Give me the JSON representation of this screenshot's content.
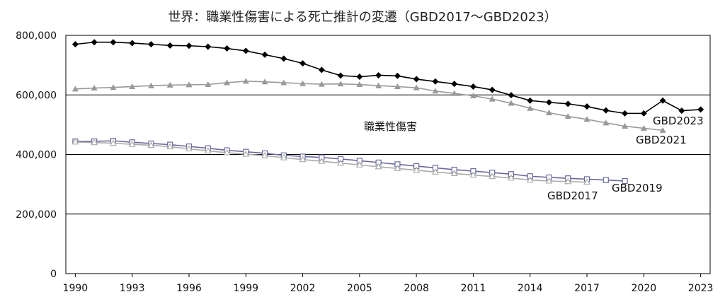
{
  "chart_data": {
    "type": "line",
    "title": "世界：職業性傷害による死亡推計の変遷（GBD2017～GBD2023）",
    "xlabel": "",
    "ylabel": "",
    "x_ticks": [
      1990,
      1993,
      1996,
      1999,
      2002,
      2005,
      2008,
      2011,
      2014,
      2017,
      2020,
      2023
    ],
    "y_ticks": [
      0,
      200000,
      400000,
      600000,
      800000
    ],
    "y_tick_labels": [
      "0",
      "200,000",
      "400,000",
      "600,000",
      "800,000"
    ],
    "xlim": [
      1989.5,
      2023.5
    ],
    "ylim": [
      0,
      800000
    ],
    "grid": "horizontal",
    "annotation": "職業性傷害",
    "series": [
      {
        "name": "GBD2023",
        "label": "GBD2023",
        "color": "#000000",
        "marker": "diamond",
        "x": [
          1990,
          1991,
          1992,
          1993,
          1994,
          1995,
          1996,
          1997,
          1998,
          1999,
          2000,
          2001,
          2002,
          2003,
          2004,
          2005,
          2006,
          2007,
          2008,
          2009,
          2010,
          2011,
          2012,
          2013,
          2014,
          2015,
          2016,
          2017,
          2018,
          2019,
          2020,
          2021,
          2022,
          2023
        ],
        "values": [
          770000,
          777000,
          777000,
          774000,
          770000,
          766000,
          765000,
          762000,
          756000,
          748000,
          735000,
          722000,
          706000,
          684000,
          665000,
          661000,
          666000,
          664000,
          653000,
          645000,
          637000,
          628000,
          617000,
          599000,
          581000,
          575000,
          570000,
          561000,
          548000,
          538000,
          538000,
          581000,
          547000,
          551000
        ]
      },
      {
        "name": "GBD2021",
        "label": "GBD2021",
        "color": "#999999",
        "marker": "triangle",
        "x": [
          1990,
          1991,
          1992,
          1993,
          1994,
          1995,
          1996,
          1997,
          1998,
          1999,
          2000,
          2001,
          2002,
          2003,
          2004,
          2005,
          2006,
          2007,
          2008,
          2009,
          2010,
          2011,
          2012,
          2013,
          2014,
          2015,
          2016,
          2017,
          2018,
          2019,
          2020,
          2021
        ],
        "values": [
          620000,
          623000,
          625000,
          628000,
          631000,
          633000,
          634000,
          635000,
          641000,
          646000,
          644000,
          641000,
          638000,
          636000,
          637000,
          635000,
          631000,
          628000,
          624000,
          613000,
          605000,
          597000,
          586000,
          572000,
          555000,
          540000,
          528000,
          518000,
          506000,
          495000,
          488000,
          481000
        ]
      },
      {
        "name": "GBD2019",
        "label": "GBD2019",
        "color": "#6a6a9a",
        "marker": "square-open",
        "x": [
          1990,
          1991,
          1992,
          1993,
          1994,
          1995,
          1996,
          1997,
          1998,
          1999,
          2000,
          2001,
          2002,
          2003,
          2004,
          2005,
          2006,
          2007,
          2008,
          2009,
          2010,
          2011,
          2012,
          2013,
          2014,
          2015,
          2016,
          2017,
          2018,
          2019
        ],
        "values": [
          444000,
          444000,
          446000,
          441000,
          437000,
          433000,
          427000,
          421000,
          414000,
          409000,
          404000,
          397000,
          393000,
          390000,
          385000,
          379000,
          373000,
          367000,
          361000,
          355000,
          349000,
          344000,
          339000,
          334000,
          327000,
          323000,
          320000,
          317000,
          314000,
          311000
        ]
      },
      {
        "name": "GBD2017",
        "label": "GBD2017",
        "color": "#aaaaaa",
        "marker": "triangle-open",
        "x": [
          1990,
          1991,
          1992,
          1993,
          1994,
          1995,
          1996,
          1997,
          1998,
          1999,
          2000,
          2001,
          2002,
          2003,
          2004,
          2005,
          2006,
          2007,
          2008,
          2009,
          2010,
          2011,
          2012,
          2013,
          2014,
          2015,
          2016,
          2017
        ],
        "values": [
          442000,
          440000,
          438000,
          434000,
          431000,
          426000,
          419000,
          412000,
          406000,
          401000,
          396000,
          389000,
          383000,
          377000,
          371000,
          365000,
          359000,
          353000,
          347000,
          341000,
          336000,
          331000,
          326000,
          321000,
          314000,
          311000,
          309000,
          307000
        ]
      }
    ]
  }
}
